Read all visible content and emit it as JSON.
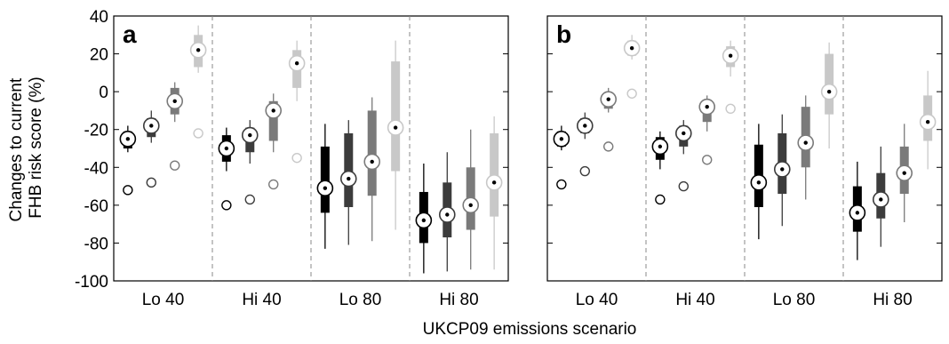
{
  "figure": {
    "ylabel": "Changes to current\nFHB risk score (%)",
    "xlabel": "UKCP09 emissions scenario"
  },
  "colors": {
    "shades": [
      "#000000",
      "#3c3c3c",
      "#7a7a7a",
      "#c8c8c8"
    ],
    "separator": "#888888"
  },
  "chart_data": [
    {
      "type": "box",
      "panel_label": "a",
      "ylim": [
        -100,
        40
      ],
      "yticks": [
        40,
        20,
        0,
        -20,
        -40,
        -60,
        -80,
        -100
      ],
      "groups": [
        "Lo 40",
        "Hi 40",
        "Lo 80",
        "Hi 80"
      ],
      "boxes": [
        [
          {
            "min": -32,
            "q1": -30,
            "median": -25,
            "q3": -21,
            "max": -18,
            "baseline": -52
          },
          {
            "min": -27,
            "q1": -24,
            "median": -18,
            "q3": -14,
            "max": -10,
            "baseline": -48
          },
          {
            "min": -16,
            "q1": -12,
            "median": -5,
            "q3": 2,
            "max": 5,
            "baseline": -39
          },
          {
            "min": 10,
            "q1": 13,
            "median": 22,
            "q3": 30,
            "max": 35,
            "baseline": -22
          }
        ],
        [
          {
            "min": -42,
            "q1": -37,
            "median": -30,
            "q3": -23,
            "max": -19,
            "baseline": -60
          },
          {
            "min": -38,
            "q1": -32,
            "median": -23,
            "q3": -19,
            "max": -15,
            "baseline": -57
          },
          {
            "min": -32,
            "q1": -26,
            "median": -10,
            "q3": -5,
            "max": -1,
            "baseline": -49
          },
          {
            "min": -5,
            "q1": 2,
            "median": 15,
            "q3": 22,
            "max": 27,
            "baseline": -35
          }
        ],
        [
          {
            "min": -83,
            "q1": -64,
            "median": -51,
            "q3": -29,
            "max": -17,
            "baseline": null
          },
          {
            "min": -81,
            "q1": -61,
            "median": -46,
            "q3": -22,
            "max": -15,
            "baseline": null
          },
          {
            "min": -79,
            "q1": -55,
            "median": -37,
            "q3": -10,
            "max": -3,
            "baseline": null
          },
          {
            "min": -73,
            "q1": -42,
            "median": -19,
            "q3": 16,
            "max": 27,
            "baseline": null
          }
        ],
        [
          {
            "min": -96,
            "q1": -80,
            "median": -68,
            "q3": -53,
            "max": -38,
            "baseline": null
          },
          {
            "min": -95,
            "q1": -77,
            "median": -65,
            "q3": -48,
            "max": -32,
            "baseline": null
          },
          {
            "min": -94,
            "q1": -73,
            "median": -60,
            "q3": -40,
            "max": -20,
            "baseline": null
          },
          {
            "min": -94,
            "q1": -66,
            "median": -48,
            "q3": -22,
            "max": -13,
            "baseline": null
          }
        ]
      ]
    },
    {
      "type": "box",
      "panel_label": "b",
      "ylim": [
        -100,
        40
      ],
      "yticks": [
        40,
        20,
        0,
        -20,
        -40,
        -60,
        -80,
        -100
      ],
      "groups": [
        "Lo 40",
        "Hi 40",
        "Lo 80",
        "Hi 80"
      ],
      "boxes": [
        [
          {
            "min": -31,
            "q1": -29,
            "median": -25,
            "q3": -21,
            "max": -18,
            "baseline": -49
          },
          {
            "min": -25,
            "q1": -22,
            "median": -18,
            "q3": -14,
            "max": -11,
            "baseline": -42
          },
          {
            "min": -11,
            "q1": -9,
            "median": -4,
            "q3": -1,
            "max": 2,
            "baseline": -29
          },
          {
            "min": 17,
            "q1": 19,
            "median": 23,
            "q3": 27,
            "max": 30,
            "baseline": -1
          }
        ],
        [
          {
            "min": -41,
            "q1": -36,
            "median": -29,
            "q3": -24,
            "max": -21,
            "baseline": -57
          },
          {
            "min": -33,
            "q1": -29,
            "median": -22,
            "q3": -18,
            "max": -15,
            "baseline": -50
          },
          {
            "min": -21,
            "q1": -16,
            "median": -8,
            "q3": -5,
            "max": -2,
            "baseline": -36
          },
          {
            "min": 8,
            "q1": 13,
            "median": 19,
            "q3": 24,
            "max": 27,
            "baseline": -9
          }
        ],
        [
          {
            "min": -78,
            "q1": -61,
            "median": -48,
            "q3": -28,
            "max": -17,
            "baseline": null
          },
          {
            "min": -71,
            "q1": -54,
            "median": -41,
            "q3": -22,
            "max": -12,
            "baseline": null
          },
          {
            "min": -57,
            "q1": -40,
            "median": -27,
            "q3": -8,
            "max": -2,
            "baseline": null
          },
          {
            "min": -30,
            "q1": -12,
            "median": 0,
            "q3": 20,
            "max": 26,
            "baseline": null
          }
        ],
        [
          {
            "min": -89,
            "q1": -74,
            "median": -64,
            "q3": -50,
            "max": -37,
            "baseline": null
          },
          {
            "min": -82,
            "q1": -67,
            "median": -57,
            "q3": -43,
            "max": -29,
            "baseline": null
          },
          {
            "min": -69,
            "q1": -54,
            "median": -43,
            "q3": -29,
            "max": -17,
            "baseline": null
          },
          {
            "min": -41,
            "q1": -26,
            "median": -16,
            "q3": -2,
            "max": 11,
            "baseline": null
          }
        ]
      ]
    }
  ]
}
